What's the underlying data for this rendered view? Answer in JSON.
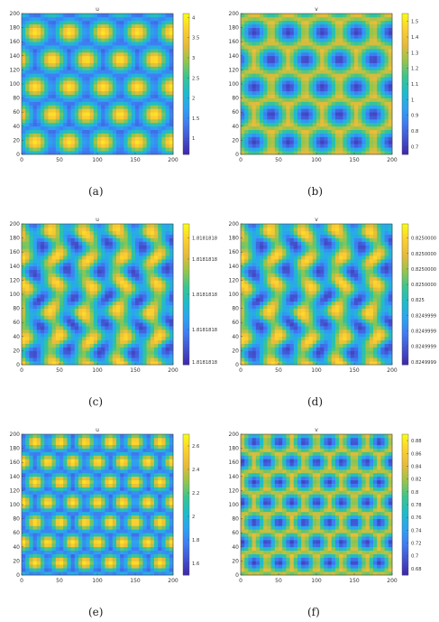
{
  "colormap": [
    "#3e26a8",
    "#4352ce",
    "#3f7cf2",
    "#2ca4f2",
    "#1fbcca",
    "#3ac58f",
    "#96c54b",
    "#e6ba3b",
    "#fccf30",
    "#f9fb15"
  ],
  "panels": [
    {
      "caption": "(a)",
      "chart_data": {
        "type": "heatmap",
        "title": "u",
        "pattern": "spots",
        "spot_mode": "high",
        "x_ticks": [
          "0",
          "50",
          "100",
          "150",
          "200"
        ],
        "y_ticks": [
          "0",
          "20",
          "40",
          "60",
          "80",
          "100",
          "120",
          "140",
          "160",
          "180",
          "200"
        ],
        "xlim": [
          0,
          200
        ],
        "ylim": [
          0,
          200
        ],
        "colorbar_range": [
          0.6,
          4.1
        ],
        "colorbar_ticks": [
          "1",
          "1.5",
          "2",
          "2.5",
          "3",
          "3.5",
          "4"
        ],
        "colorbar_values": [
          1,
          1.5,
          2,
          2.5,
          3,
          3.5,
          4
        ]
      }
    },
    {
      "caption": "(b)",
      "chart_data": {
        "type": "heatmap",
        "title": "v",
        "pattern": "spots",
        "spot_mode": "low",
        "x_ticks": [
          "0",
          "50",
          "100",
          "150",
          "200"
        ],
        "y_ticks": [
          "0",
          "20",
          "40",
          "60",
          "80",
          "100",
          "120",
          "140",
          "160",
          "180",
          "200"
        ],
        "xlim": [
          0,
          200
        ],
        "ylim": [
          0,
          200
        ],
        "colorbar_range": [
          0.65,
          1.55
        ],
        "colorbar_ticks": [
          "0.7",
          "0.8",
          "0.9",
          "1",
          "1.1",
          "1.2",
          "1.3",
          "1.4",
          "1.5"
        ],
        "colorbar_values": [
          0.7,
          0.8,
          0.9,
          1,
          1.1,
          1.2,
          1.3,
          1.4,
          1.5
        ]
      }
    },
    {
      "caption": "(c)",
      "chart_data": {
        "type": "heatmap",
        "title": "u",
        "pattern": "stripes",
        "x_ticks": [
          "0",
          "50",
          "100",
          "150",
          "200"
        ],
        "y_ticks": [
          "0",
          "20",
          "40",
          "60",
          "80",
          "100",
          "120",
          "140",
          "160",
          "180",
          "200"
        ],
        "xlim": [
          0,
          200
        ],
        "ylim": [
          0,
          200
        ],
        "colorbar_range": [
          0,
          1
        ],
        "colorbar_ticks": [
          "1.8181818",
          "1.8181818",
          "1.8181818",
          "1.8181818",
          "1.8181818"
        ],
        "colorbar_values": [
          0.02,
          0.25,
          0.5,
          0.75,
          0.9
        ]
      }
    },
    {
      "caption": "(d)",
      "chart_data": {
        "type": "heatmap",
        "title": "v",
        "pattern": "stripes",
        "x_ticks": [
          "0",
          "50",
          "100",
          "150",
          "200"
        ],
        "y_ticks": [
          "0",
          "20",
          "40",
          "60",
          "80",
          "100",
          "120",
          "140",
          "160",
          "180",
          "200"
        ],
        "xlim": [
          0,
          200
        ],
        "ylim": [
          0,
          200
        ],
        "colorbar_range": [
          0,
          1
        ],
        "colorbar_ticks": [
          "0.8249999",
          "0.8249999",
          "0.8249999",
          "0.8249999",
          "0.825",
          "0.8250000",
          "0.8250000",
          "0.8250000",
          "0.8250000"
        ],
        "colorbar_values": [
          0.02,
          0.13,
          0.24,
          0.35,
          0.46,
          0.57,
          0.68,
          0.79,
          0.9
        ]
      }
    },
    {
      "caption": "(e)",
      "chart_data": {
        "type": "heatmap",
        "title": "u",
        "pattern": "spots_dense",
        "spot_mode": "high",
        "x_ticks": [
          "0",
          "50",
          "100",
          "150",
          "200"
        ],
        "y_ticks": [
          "0",
          "20",
          "40",
          "60",
          "80",
          "100",
          "120",
          "140",
          "160",
          "180",
          "200"
        ],
        "xlim": [
          0,
          200
        ],
        "ylim": [
          0,
          200
        ],
        "colorbar_range": [
          1.5,
          2.7
        ],
        "colorbar_ticks": [
          "1.6",
          "1.8",
          "2",
          "2.2",
          "2.4",
          "2.6"
        ],
        "colorbar_values": [
          1.6,
          1.8,
          2,
          2.2,
          2.4,
          2.6
        ]
      }
    },
    {
      "caption": "(f)",
      "chart_data": {
        "type": "heatmap",
        "title": "v",
        "pattern": "spots_dense",
        "spot_mode": "low",
        "x_ticks": [
          "0",
          "50",
          "100",
          "150",
          "200"
        ],
        "y_ticks": [
          "0",
          "20",
          "40",
          "60",
          "80",
          "100",
          "120",
          "140",
          "160",
          "180",
          "200"
        ],
        "xlim": [
          0,
          200
        ],
        "ylim": [
          0,
          200
        ],
        "colorbar_range": [
          0.67,
          0.89
        ],
        "colorbar_ticks": [
          "0.68",
          "0.7",
          "0.72",
          "0.74",
          "0.76",
          "0.78",
          "0.8",
          "0.82",
          "0.84",
          "0.86",
          "0.88"
        ],
        "colorbar_values": [
          0.68,
          0.7,
          0.72,
          0.74,
          0.76,
          0.78,
          0.8,
          0.82,
          0.84,
          0.86,
          0.88
        ]
      }
    }
  ]
}
